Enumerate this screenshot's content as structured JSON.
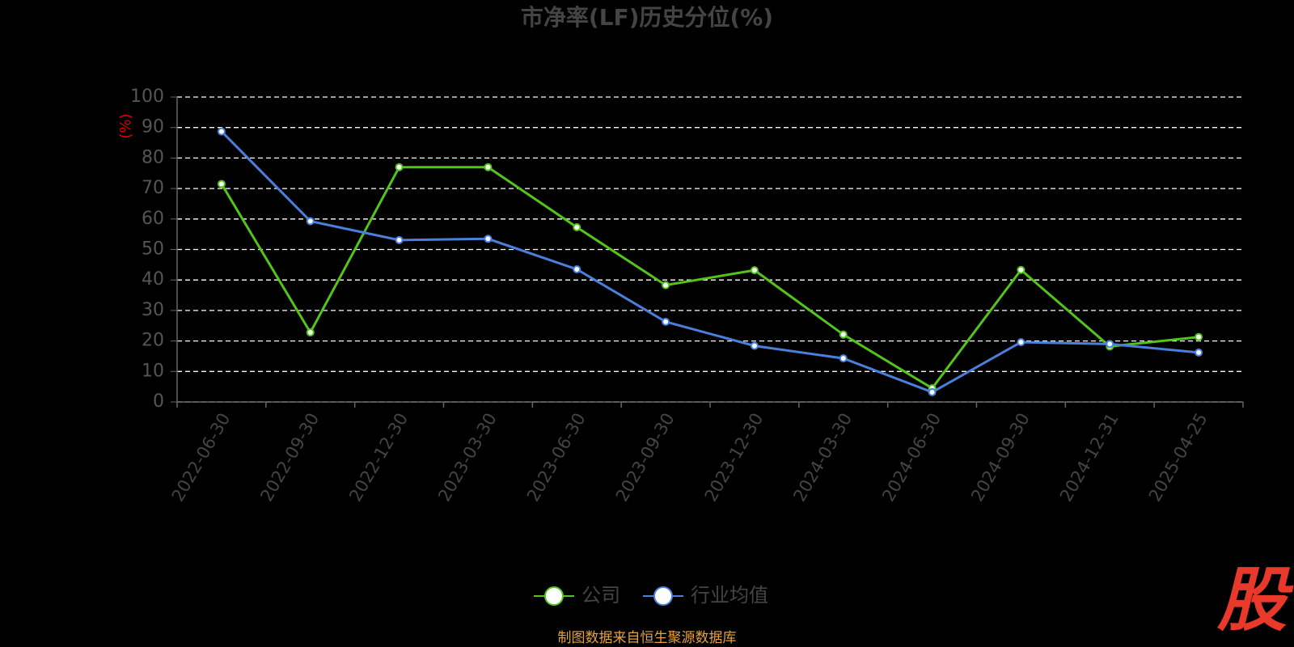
{
  "chart_data": {
    "type": "line",
    "title": "市净率(LF)历史分位(%)",
    "y_axis_label": "(%)",
    "categories": [
      "2022-06-30",
      "2022-09-30",
      "2022-12-30",
      "2023-03-30",
      "2023-06-30",
      "2023-09-30",
      "2023-12-30",
      "2024-03-30",
      "2024-06-30",
      "2024-09-30",
      "2024-12-31",
      "2025-04-25"
    ],
    "series": [
      {
        "name": "公司",
        "color": "#52c41a",
        "values": [
          71.5,
          22.8,
          77,
          77,
          57.3,
          38.3,
          43.2,
          22.1,
          4.5,
          43.3,
          18.2,
          21.3
        ]
      },
      {
        "name": "行业均值",
        "color": "#4a7fdc",
        "values": [
          88.7,
          59.3,
          53.1,
          53.5,
          43.5,
          26.3,
          18.4,
          14.3,
          3.2,
          19.6,
          19.0,
          16.2
        ]
      }
    ],
    "ylim": [
      0,
      100
    ],
    "yticks": [
      0,
      10,
      20,
      30,
      40,
      50,
      60,
      70,
      80,
      90,
      100
    ],
    "grid": true,
    "legend": "bottom",
    "source": "制图数据来自恒生聚源数据库",
    "logo": "股"
  }
}
